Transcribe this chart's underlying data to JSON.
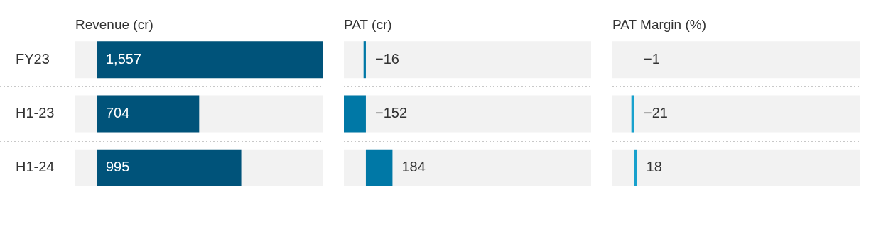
{
  "chart_data": [
    {
      "type": "bar",
      "orientation": "horizontal",
      "title": "Revenue (cr)",
      "categories": [
        "FY23",
        "H1-23",
        "H1-24"
      ],
      "values": [
        1557,
        704,
        995
      ],
      "value_labels": [
        "1,557",
        "704",
        "995"
      ],
      "color": "#00537a",
      "xlim": [
        -152,
        1557
      ],
      "grid": "y",
      "tick_labels": "y"
    },
    {
      "type": "bar",
      "orientation": "horizontal",
      "title": "PAT (cr)",
      "categories": [
        null,
        null,
        null
      ],
      "values": [
        -16,
        -152,
        184
      ],
      "value_labels": [
        "−16",
        "−152",
        "184"
      ],
      "color": "#0078a6",
      "xlim": [
        -152,
        1557
      ],
      "grid": "y",
      "tick_labels": false
    },
    {
      "type": "bar",
      "orientation": "horizontal",
      "title": "PAT Margin (%)",
      "categories": [
        null,
        null,
        null
      ],
      "values": [
        -1,
        -21,
        18
      ],
      "value_labels": [
        "−1",
        "−21",
        "18"
      ],
      "color": "#18a1cd",
      "xlim": [
        -152,
        1557
      ],
      "grid": "y",
      "tick_labels": false
    }
  ]
}
